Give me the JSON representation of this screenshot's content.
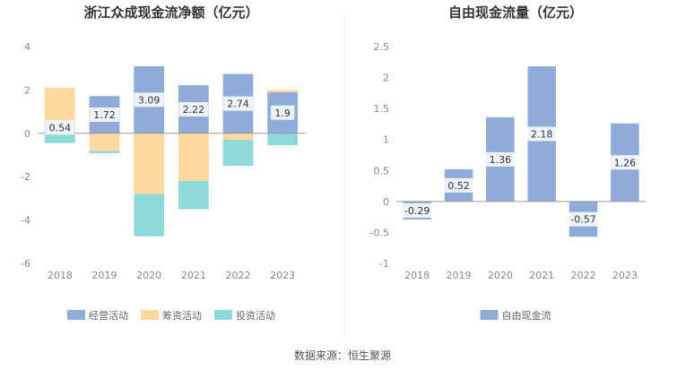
{
  "colors": {
    "operating": "#8eabda",
    "financing": "#fdd9a0",
    "investing": "#8dd8d8",
    "fcf": "#8eabda",
    "axis": "#999999",
    "grid": "#eeeeee",
    "labelBg": "#ffffff"
  },
  "footer": {
    "source": "数据来源：恒生聚源"
  },
  "chart_data": [
    {
      "type": "bar",
      "stacked": true,
      "title": "浙江众成现金流净额（亿元）",
      "categories": [
        "2018",
        "2019",
        "2020",
        "2021",
        "2022",
        "2023"
      ],
      "ylim": [
        -6,
        4
      ],
      "yticks": [
        -6,
        -4,
        -2,
        0,
        2,
        4
      ],
      "grid": false,
      "legend_position": "bottom",
      "series": [
        {
          "name": "经营活动",
          "color_key": "operating",
          "values": [
            0.54,
            1.72,
            3.09,
            2.22,
            2.74,
            1.9
          ],
          "show_labels": true
        },
        {
          "name": "筹资活动",
          "color_key": "financing",
          "values": [
            1.56,
            -0.82,
            -2.8,
            -2.2,
            -0.3,
            0.1
          ],
          "show_labels": false
        },
        {
          "name": "投资活动",
          "color_key": "investing",
          "values": [
            -0.45,
            -0.1,
            -1.95,
            -1.3,
            -1.2,
            -0.55
          ],
          "show_labels": false
        }
      ]
    },
    {
      "type": "bar",
      "title": "自由现金流量（亿元）",
      "categories": [
        "2018",
        "2019",
        "2020",
        "2021",
        "2022",
        "2023"
      ],
      "ylim": [
        -1,
        2.5
      ],
      "yticks": [
        -1,
        -0.5,
        0,
        0.5,
        1,
        1.5,
        2,
        2.5
      ],
      "grid": false,
      "legend_position": "bottom",
      "series": [
        {
          "name": "自由现金流",
          "color_key": "fcf",
          "values": [
            -0.29,
            0.52,
            1.36,
            2.18,
            -0.57,
            1.26
          ],
          "show_labels": true
        }
      ]
    }
  ]
}
